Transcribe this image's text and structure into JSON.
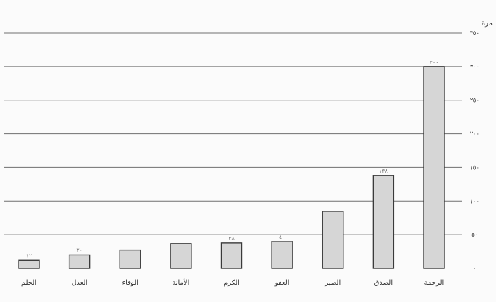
{
  "chart_data": {
    "type": "bar",
    "direction": "rtl",
    "categories": [
      "الرحمة",
      "الصدق",
      "الصبر",
      "العفو",
      "الكرم",
      "الأمانة",
      "الوفاء",
      "العدل",
      "الحلم"
    ],
    "values": [
      300,
      138,
      85,
      40,
      38,
      37,
      27,
      20,
      12
    ],
    "data_labels": [
      "٣٠٠",
      "١٣٨",
      "",
      "٤٠",
      "٣٨",
      "",
      "",
      "٢٠",
      "١٢"
    ],
    "ylabel": "مرة",
    "ylim": [
      0,
      350
    ],
    "yticks": [
      0,
      50,
      100,
      150,
      200,
      250,
      300,
      350
    ],
    "ytick_labels": [
      "٠",
      "٥٠",
      "١٠٠",
      "١٥٠",
      "٢٠٠",
      "٢٥٠",
      "٣٠٠",
      "٣٥٠"
    ],
    "grid": true,
    "legend": "none",
    "colors": {
      "bar_fill": "#d6d6d6",
      "bar_stroke": "#3a3a3a",
      "grid": "#6f6f6f"
    }
  }
}
